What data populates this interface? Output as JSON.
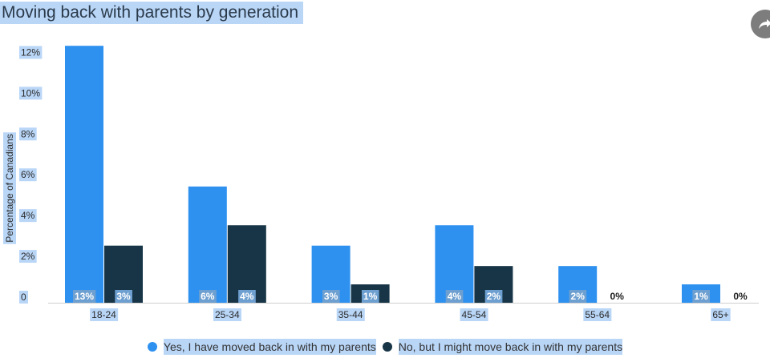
{
  "chart_data": {
    "type": "bar",
    "title": "Moving back with parents by generation",
    "xlabel": "",
    "ylabel": "Percentage of Canadians",
    "ylim": [
      0,
      13
    ],
    "yticks": [
      "0",
      "2%",
      "4%",
      "6%",
      "8%",
      "10%",
      "12%"
    ],
    "grid": false,
    "legend_position": "bottom",
    "categories": [
      "18-24",
      "25-34",
      "35-44",
      "45-54",
      "55-64",
      "65+"
    ],
    "series": [
      {
        "name": "Yes, I have moved back in with my parents",
        "color": "#2e91f0",
        "values": [
          12.6,
          5.7,
          2.8,
          3.8,
          1.8,
          0.9
        ],
        "labels": [
          "13%",
          "6%",
          "3%",
          "4%",
          "2%",
          "1%"
        ]
      },
      {
        "name": "No, but I might move back in with my parents",
        "color": "#173547",
        "values": [
          2.8,
          3.8,
          0.9,
          1.8,
          0,
          0
        ],
        "labels": [
          "3%",
          "4%",
          "1%",
          "2%",
          "0%",
          "0%"
        ]
      }
    ]
  },
  "icons": {
    "share": "share-icon"
  }
}
